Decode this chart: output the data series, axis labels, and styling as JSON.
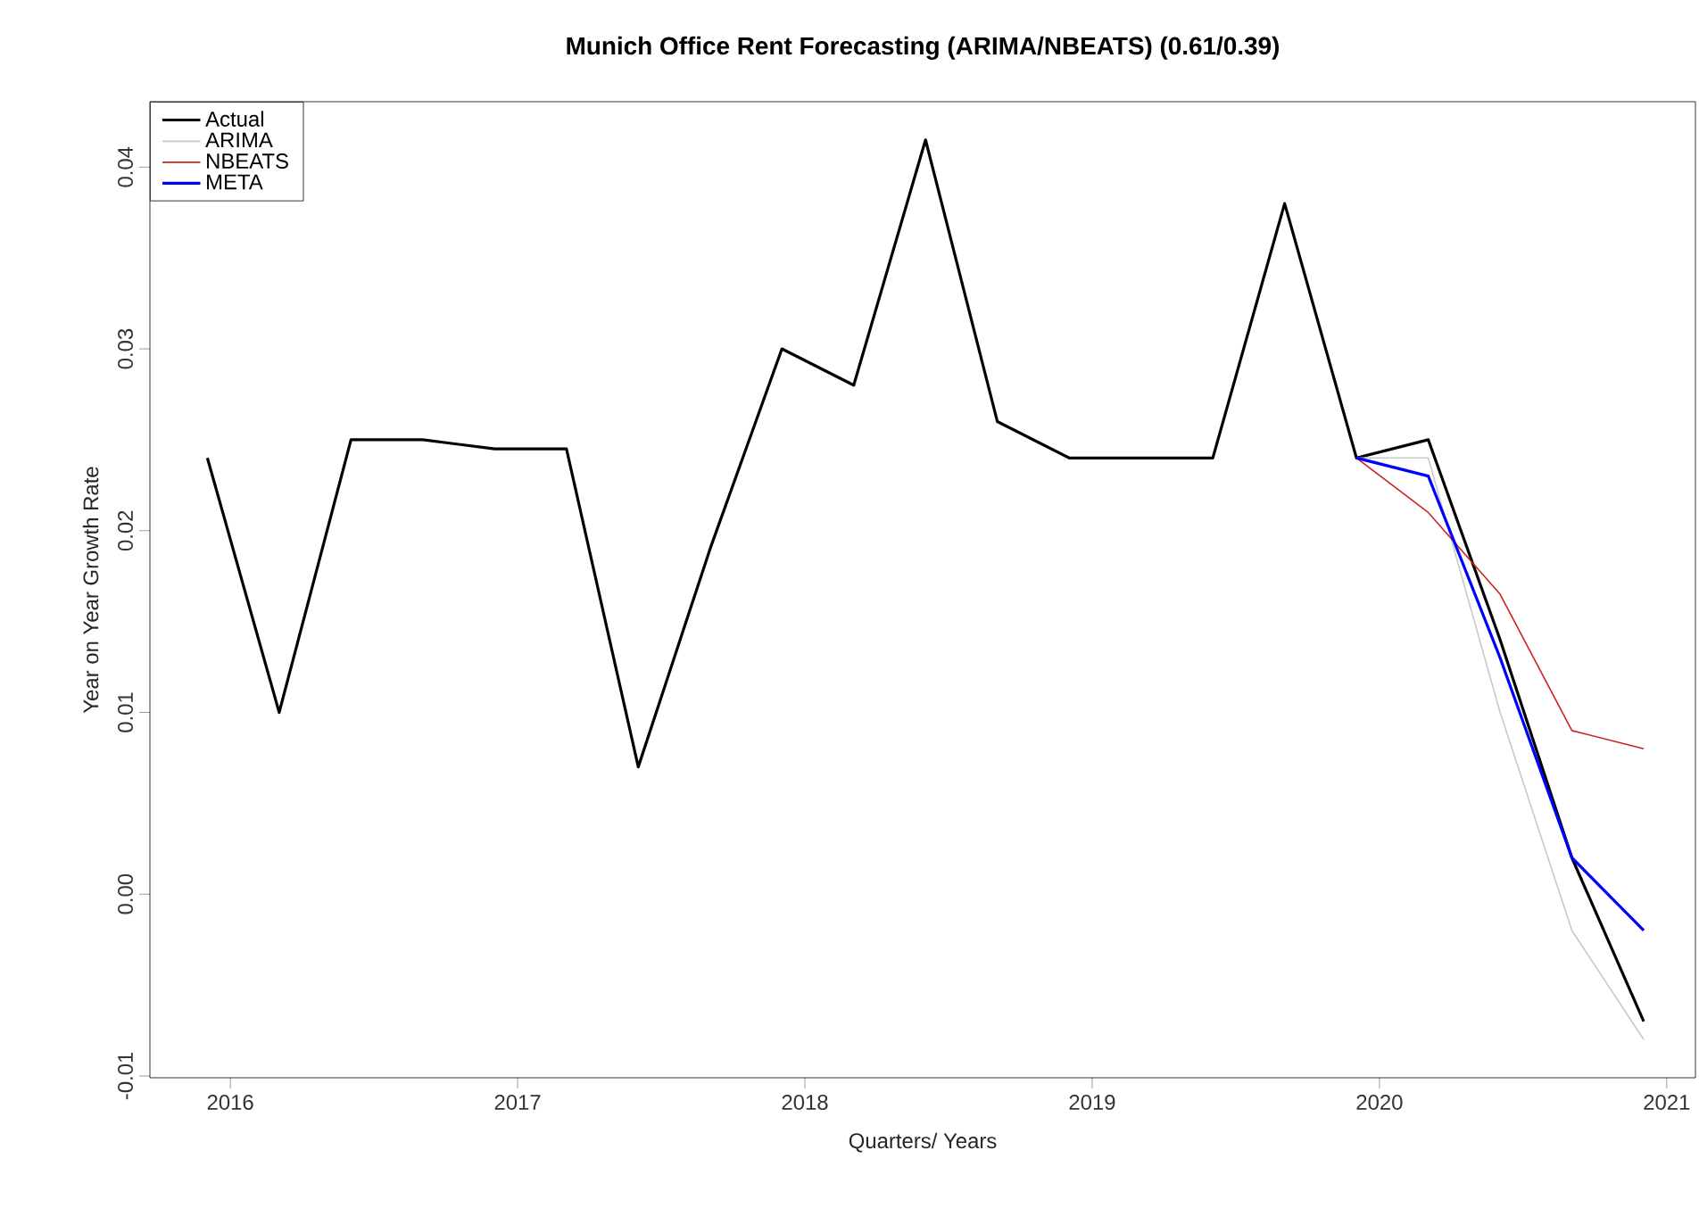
{
  "chart_data": {
    "type": "line",
    "title": "Munich Office Rent Forecasting (ARIMA/NBEATS) (0.61/0.39)",
    "xlabel": "Quarters/ Years",
    "ylabel": "Year on Year Growth Rate",
    "xlim": [
      2015.72,
      2021.1
    ],
    "ylim": [
      -0.0101,
      0.0436
    ],
    "xticks": [
      2016,
      2017,
      2018,
      2019,
      2020,
      2021
    ],
    "yticks": [
      {
        "value": -0.01,
        "label": "-0.01"
      },
      {
        "value": 0,
        "label": "0.00"
      },
      {
        "value": 0.01,
        "label": "0.01"
      },
      {
        "value": 0.02,
        "label": "0.02"
      },
      {
        "value": 0.03,
        "label": "0.03"
      },
      {
        "value": 0.04,
        "label": "0.04"
      }
    ],
    "legend": "top left",
    "grid": false,
    "marker": "none",
    "line_style": "solid",
    "series": [
      {
        "name": "Actual",
        "color": "#000000",
        "x": [
          2015.92,
          2016.17,
          2016.42,
          2016.67,
          2016.92,
          2017.17,
          2017.42,
          2017.67,
          2017.92,
          2018.17,
          2018.42,
          2018.67,
          2018.92,
          2019.17,
          2019.42,
          2019.67,
          2019.92,
          2020.17,
          2020.42,
          2020.67,
          2020.92
        ],
        "values": [
          0.024,
          0.01,
          0.025,
          0.025,
          0.0245,
          0.0245,
          0.007,
          0.019,
          0.03,
          0.028,
          0.0415,
          0.026,
          0.024,
          0.024,
          0.024,
          0.038,
          0.024,
          0.025,
          0.014,
          0.002,
          -0.007
        ]
      },
      {
        "name": "ARIMA",
        "color": "#c8c8c8",
        "x": [
          2019.92,
          2020.17,
          2020.42,
          2020.67,
          2020.92
        ],
        "values": [
          0.024,
          0.024,
          0.01,
          -0.002,
          -0.008
        ]
      },
      {
        "name": "NBEATS",
        "color": "#d02020",
        "x": [
          2019.92,
          2020.17,
          2020.42,
          2020.67,
          2020.92
        ],
        "values": [
          0.024,
          0.021,
          0.0165,
          0.009,
          0.008
        ]
      },
      {
        "name": "META",
        "color": "#0000ff",
        "x": [
          2019.92,
          2020.17,
          2020.42,
          2020.67,
          2020.92
        ],
        "values": [
          0.024,
          0.023,
          0.013,
          0.002,
          -0.002
        ]
      }
    ]
  }
}
